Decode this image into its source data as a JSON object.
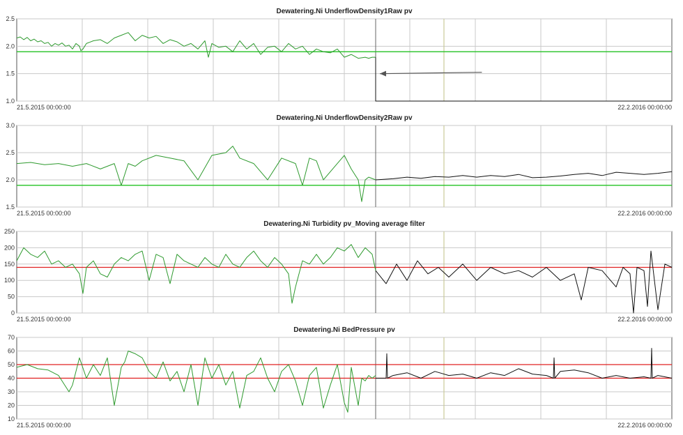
{
  "colors": {
    "history": "#2e9a2e",
    "live": "#111111",
    "limit_green": "#22c222",
    "limit_red": "#e02020",
    "grid": "#c8c8c8",
    "marker": "#c9c99a",
    "arrow": "#555555"
  },
  "chart_data": [
    {
      "type": "line",
      "title": "Dewatering.Ni UnderflowDensity1Raw pv",
      "x_start_label": "21.5.2015 00:00:00",
      "x_end_label": "22.2.2016 00:00:00",
      "ylim": [
        1.0,
        2.5
      ],
      "yticks": [
        "1.0",
        "1.5",
        "2.0",
        "2.5"
      ],
      "limits": [
        {
          "value": 1.9,
          "color": "green"
        }
      ],
      "annotation": "arrow pointing to end of green series",
      "series": [
        {
          "color": "green",
          "x": [
            0,
            5,
            10,
            15,
            20,
            25,
            30,
            35,
            40,
            45,
            50,
            55,
            60,
            65,
            70,
            75,
            80,
            85,
            90,
            92,
            95,
            100,
            110,
            120,
            130,
            140,
            150,
            160,
            170,
            180,
            190,
            200,
            210,
            220,
            230,
            240,
            250,
            260,
            270,
            275,
            280,
            290,
            300,
            310,
            320,
            330,
            340,
            350,
            360,
            370,
            380,
            390,
            400,
            410,
            420,
            430,
            440,
            450,
            460,
            470,
            480,
            490,
            500,
            505,
            510,
            515
          ],
          "y": [
            2.15,
            2.17,
            2.12,
            2.16,
            2.1,
            2.13,
            2.08,
            2.1,
            2.05,
            2.07,
            2.0,
            2.05,
            2.02,
            2.06,
            2.0,
            2.02,
            1.95,
            2.05,
            2.0,
            1.92,
            1.95,
            2.05,
            2.1,
            2.12,
            2.05,
            2.15,
            2.2,
            2.25,
            2.1,
            2.2,
            2.15,
            2.18,
            2.05,
            2.12,
            2.08,
            2.0,
            2.05,
            1.95,
            2.1,
            1.8,
            2.05,
            1.98,
            2.0,
            1.9,
            2.1,
            1.95,
            2.05,
            1.85,
            1.98,
            2.0,
            1.9,
            2.05,
            1.95,
            2.0,
            1.85,
            1.95,
            1.9,
            1.88,
            1.95,
            1.8,
            1.85,
            1.78,
            1.8,
            1.78,
            1.8,
            1.8
          ]
        },
        {
          "color": "black",
          "x": [
            515,
            515,
            940
          ],
          "y": [
            1.8,
            1.0,
            1.0
          ]
        }
      ]
    },
    {
      "type": "line",
      "title": "Dewatering.Ni UnderflowDensity2Raw pv",
      "x_start_label": "21.5.2015 00:00:00",
      "x_end_label": "22.2.2016 00:00:00",
      "ylim": [
        1.5,
        3.0
      ],
      "yticks": [
        "1.5",
        "2.0",
        "2.5",
        "3.0"
      ],
      "limits": [
        {
          "value": 1.9,
          "color": "green"
        }
      ],
      "series": [
        {
          "color": "green",
          "x": [
            0,
            20,
            40,
            60,
            80,
            100,
            120,
            140,
            150,
            160,
            170,
            180,
            200,
            220,
            240,
            260,
            280,
            300,
            310,
            320,
            340,
            360,
            380,
            400,
            410,
            420,
            430,
            440,
            460,
            470,
            480,
            490,
            495,
            500,
            505,
            515
          ],
          "y": [
            2.3,
            2.32,
            2.28,
            2.3,
            2.25,
            2.3,
            2.2,
            2.3,
            1.9,
            2.3,
            2.25,
            2.35,
            2.45,
            2.4,
            2.35,
            2.0,
            2.45,
            2.5,
            2.62,
            2.4,
            2.3,
            2.0,
            2.4,
            2.3,
            1.9,
            2.4,
            2.35,
            2.0,
            2.3,
            2.45,
            2.2,
            2.0,
            1.6,
            2.0,
            2.05,
            2.0
          ]
        },
        {
          "color": "black",
          "x": [
            515,
            540,
            560,
            580,
            600,
            620,
            640,
            660,
            680,
            700,
            720,
            740,
            760,
            780,
            800,
            820,
            840,
            860,
            880,
            900,
            920,
            940
          ],
          "y": [
            2.0,
            2.02,
            2.05,
            2.03,
            2.06,
            2.05,
            2.08,
            2.05,
            2.08,
            2.06,
            2.1,
            2.04,
            2.05,
            2.07,
            2.1,
            2.12,
            2.08,
            2.14,
            2.12,
            2.1,
            2.12,
            2.15
          ]
        }
      ]
    },
    {
      "type": "line",
      "title": "Dewatering.Ni Turbidity pv_Moving average filter",
      "x_start_label": "21.5.2015 00:00:00",
      "x_end_label": "22.2.2016 00:00:00",
      "ylim": [
        0,
        250
      ],
      "yticks": [
        "0",
        "50",
        "100",
        "150",
        "200",
        "250"
      ],
      "limits": [
        {
          "value": 140,
          "color": "red"
        }
      ],
      "series": [
        {
          "color": "green",
          "x": [
            0,
            10,
            20,
            30,
            40,
            50,
            60,
            70,
            80,
            90,
            95,
            100,
            110,
            120,
            130,
            140,
            150,
            160,
            170,
            180,
            190,
            200,
            210,
            220,
            230,
            240,
            250,
            260,
            270,
            280,
            290,
            300,
            310,
            320,
            330,
            340,
            350,
            360,
            370,
            380,
            390,
            395,
            400,
            410,
            420,
            430,
            440,
            450,
            460,
            470,
            480,
            490,
            500,
            510,
            515
          ],
          "y": [
            160,
            200,
            180,
            170,
            190,
            150,
            160,
            140,
            150,
            120,
            60,
            140,
            160,
            120,
            110,
            150,
            170,
            160,
            180,
            190,
            100,
            180,
            170,
            90,
            180,
            160,
            150,
            140,
            170,
            150,
            140,
            180,
            150,
            140,
            170,
            190,
            160,
            140,
            170,
            150,
            120,
            30,
            80,
            160,
            150,
            180,
            150,
            170,
            200,
            190,
            210,
            170,
            200,
            180,
            130
          ]
        },
        {
          "color": "black",
          "x": [
            515,
            530,
            545,
            560,
            575,
            590,
            605,
            620,
            640,
            660,
            680,
            700,
            720,
            740,
            760,
            780,
            800,
            810,
            820,
            840,
            860,
            870,
            880,
            885,
            890,
            900,
            905,
            910,
            920,
            930,
            940
          ],
          "y": [
            130,
            90,
            150,
            100,
            160,
            120,
            140,
            110,
            150,
            100,
            140,
            120,
            130,
            110,
            140,
            100,
            120,
            40,
            140,
            130,
            80,
            140,
            120,
            0,
            140,
            130,
            20,
            190,
            10,
            150,
            140
          ]
        }
      ]
    },
    {
      "type": "line",
      "title": "Dewatering.Ni BedPressure pv",
      "x_start_label": "21.5.2015 00:00:00",
      "x_end_label": "22.2.2016 00:00:00",
      "ylim": [
        10,
        70
      ],
      "yticks": [
        "10",
        "20",
        "30",
        "40",
        "50",
        "60",
        "70"
      ],
      "limits": [
        {
          "value": 50,
          "color": "red"
        },
        {
          "value": 40,
          "color": "red"
        }
      ],
      "series": [
        {
          "color": "green",
          "x": [
            0,
            15,
            30,
            45,
            60,
            75,
            80,
            90,
            100,
            110,
            120,
            130,
            140,
            150,
            155,
            160,
            170,
            180,
            190,
            200,
            210,
            220,
            230,
            240,
            250,
            260,
            270,
            280,
            290,
            300,
            310,
            320,
            330,
            340,
            350,
            360,
            370,
            380,
            390,
            400,
            410,
            420,
            430,
            440,
            450,
            460,
            470,
            475,
            480,
            490,
            495,
            500,
            505,
            510,
            515
          ],
          "y": [
            48,
            50,
            47,
            46,
            42,
            30,
            35,
            55,
            40,
            50,
            42,
            55,
            20,
            48,
            52,
            60,
            58,
            55,
            45,
            40,
            52,
            38,
            45,
            30,
            50,
            20,
            55,
            40,
            50,
            35,
            45,
            18,
            42,
            45,
            55,
            40,
            30,
            45,
            50,
            38,
            20,
            42,
            48,
            18,
            35,
            50,
            22,
            15,
            48,
            20,
            40,
            38,
            42,
            40,
            42
          ]
        },
        {
          "color": "black",
          "x": [
            515,
            525,
            530,
            531,
            532,
            540,
            560,
            580,
            600,
            620,
            640,
            660,
            680,
            700,
            720,
            740,
            760,
            770,
            771,
            772,
            780,
            800,
            820,
            840,
            860,
            880,
            900,
            910,
            911,
            912,
            920,
            940
          ],
          "y": [
            40,
            40,
            40,
            58,
            40,
            42,
            44,
            40,
            45,
            42,
            43,
            40,
            44,
            42,
            47,
            43,
            42,
            40,
            55,
            40,
            45,
            46,
            44,
            40,
            42,
            40,
            41,
            40,
            62,
            40,
            42,
            40
          ]
        }
      ]
    }
  ]
}
